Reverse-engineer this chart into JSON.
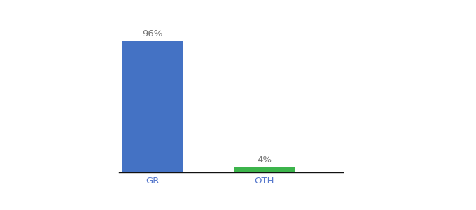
{
  "categories": [
    "GR",
    "OTH"
  ],
  "values": [
    96,
    4
  ],
  "bar_colors": [
    "#4472c4",
    "#3cb44b"
  ],
  "label_texts": [
    "96%",
    "4%"
  ],
  "ylim": [
    0,
    107
  ],
  "background_color": "#ffffff",
  "bar_width": 0.55,
  "tick_fontsize": 9.5,
  "label_fontsize": 9.5,
  "label_color": "#777777",
  "tick_color": "#5577cc",
  "xlim": [
    -0.3,
    1.7
  ]
}
